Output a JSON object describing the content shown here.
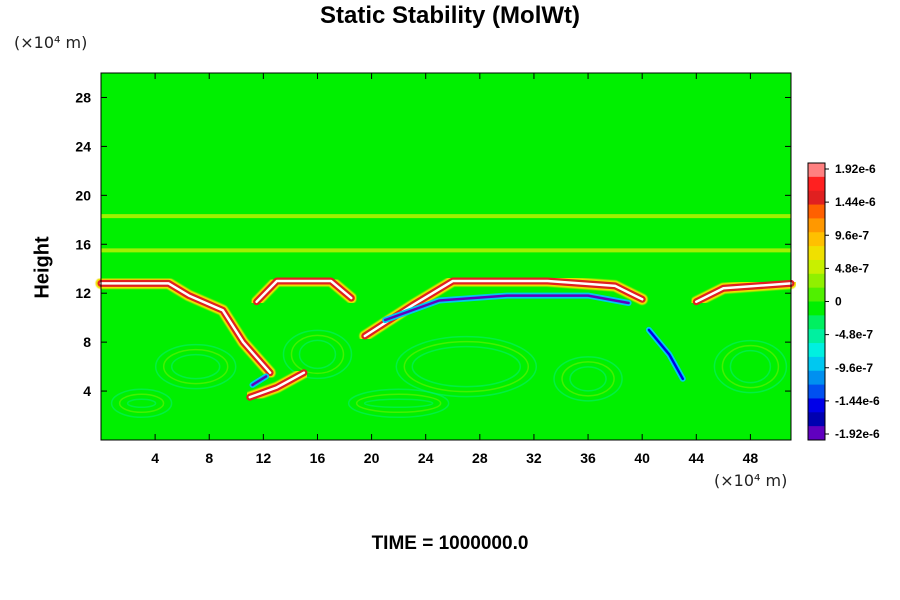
{
  "chart_data": {
    "type": "heatmap",
    "title": "Static Stability (MolWt)",
    "ylabel": "Height",
    "xlabel": "",
    "x_unit_label": "(×10⁴ m)",
    "y_unit_label": "(×10⁴ m)",
    "footer": "TIME = 1000000.0",
    "xlim": [
      0,
      51
    ],
    "ylim": [
      0,
      30
    ],
    "x_ticks": [
      4,
      8,
      12,
      16,
      20,
      24,
      28,
      32,
      36,
      40,
      44,
      48
    ],
    "y_ticks": [
      4,
      8,
      12,
      16,
      20,
      24,
      28
    ],
    "colorbar": {
      "min": -1.92e-06,
      "max": 1.92e-06,
      "labels": [
        "1.92e-6",
        "1.44e-6",
        "9.6e-7",
        "4.8e-7",
        "0",
        "-4.8e-7",
        "-9.6e-7",
        "-1.44e-6",
        "-1.92e-6"
      ],
      "colors": [
        "#ff8080",
        "#ff2020",
        "#e02020",
        "#ff6000",
        "#ff9800",
        "#ffc000",
        "#f0e000",
        "#c8f000",
        "#90f000",
        "#50f000",
        "#00f000",
        "#00f060",
        "#00f0a0",
        "#00f0e0",
        "#00c8f0",
        "#0090f0",
        "#0050f0",
        "#0000e8",
        "#0000b0",
        "#6000c0"
      ]
    },
    "features": [
      {
        "kind": "layer",
        "x": [
          0,
          5,
          6.5,
          9,
          10.5,
          12.5
        ],
        "y": [
          12.8,
          12.8,
          11.8,
          10.6,
          8,
          5.5
        ],
        "value": 1.92e-06
      },
      {
        "kind": "layer",
        "x": [
          11.5,
          13,
          17,
          18.5
        ],
        "y": [
          11.3,
          13,
          13,
          11.6
        ],
        "value": 1.92e-06
      },
      {
        "kind": "layer",
        "x": [
          19.5,
          23,
          26,
          33,
          38,
          40
        ],
        "y": [
          8.5,
          11,
          13,
          13,
          12.6,
          11.5
        ],
        "value": 1.92e-06
      },
      {
        "kind": "layer",
        "x": [
          44,
          46,
          51
        ],
        "y": [
          11.3,
          12.4,
          12.8
        ],
        "value": 1.92e-06
      },
      {
        "kind": "layer",
        "x": [
          11,
          13,
          15
        ],
        "y": [
          3.5,
          4.3,
          5.5
        ],
        "value": 1.92e-06
      },
      {
        "kind": "band",
        "x": [
          0,
          51
        ],
        "y": [
          15.5,
          15.5
        ],
        "value": 4.8e-07
      },
      {
        "kind": "band",
        "x": [
          0,
          51
        ],
        "y": [
          18.3,
          18.3
        ],
        "value": 4.8e-07
      },
      {
        "kind": "neg",
        "x": [
          21,
          25,
          30,
          36,
          39
        ],
        "y": [
          9.8,
          11.4,
          11.8,
          11.8,
          11.2
        ],
        "value": -1.92e-06
      },
      {
        "kind": "neg",
        "x": [
          11.2,
          12.2
        ],
        "y": [
          4.5,
          5.2
        ],
        "value": -1.92e-06
      },
      {
        "kind": "neg",
        "x": [
          40.5,
          42,
          43
        ],
        "y": [
          9,
          7,
          5
        ],
        "value": -1.44e-06
      }
    ]
  }
}
